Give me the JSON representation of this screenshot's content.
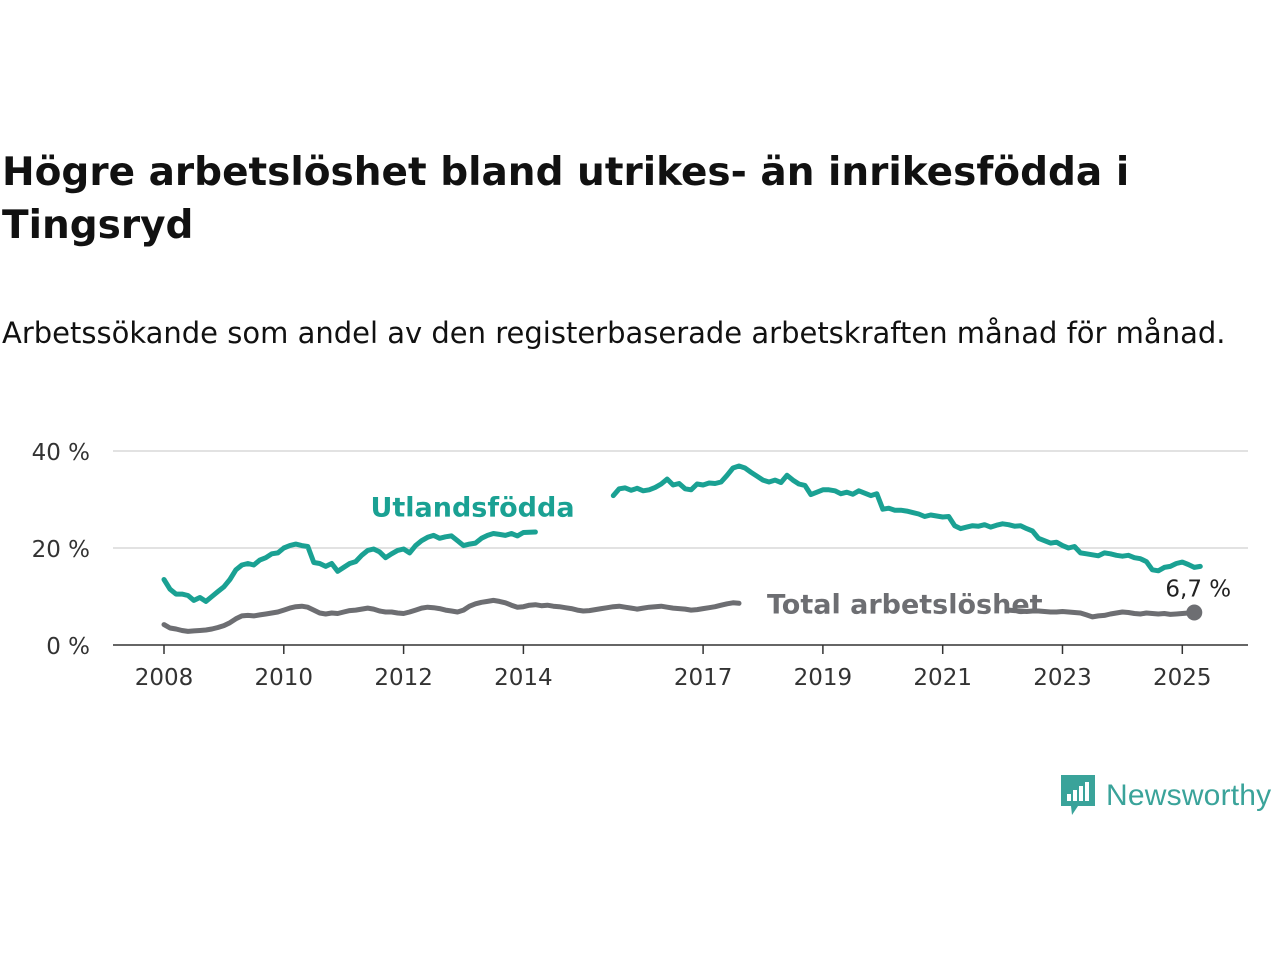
{
  "title": "Högre arbetslöshet bland utrikes- än inrikesfödda i Tingsryd",
  "subtitle": "Arbetssökande som andel av den registerbaserade arbetskraften månad för månad.",
  "brand": {
    "name": "Newsworthy",
    "icon": "newsworthy-logo-icon",
    "color": "#3aa39a"
  },
  "chart_data": {
    "type": "line",
    "title": "Högre arbetslöshet bland utrikes- än inrikesfödda i Tingsryd",
    "subtitle": "Arbetssökande som andel av den registerbaserade arbetskraften månad för månad.",
    "xlabel": "",
    "ylabel": "",
    "x_range": [
      2008,
      2025.3
    ],
    "ylim": [
      0,
      40
    ],
    "x_ticks": [
      2008,
      2010,
      2012,
      2014,
      2017,
      2019,
      2021,
      2023,
      2025
    ],
    "x_tick_labels": [
      "2008",
      "2010",
      "2012",
      "2014",
      "2017",
      "2019",
      "2021",
      "2023",
      "2025"
    ],
    "y_ticks": [
      0,
      20,
      40
    ],
    "y_tick_labels": [
      "0 %",
      "20 %",
      "40 %"
    ],
    "grid": "horizontal",
    "legend": "inline labels",
    "series": [
      {
        "name": "Utlandsfödda",
        "color": "#1aa193",
        "label_position": [
          2013.0,
          26.5
        ],
        "points": [
          [
            2008.0,
            13.5
          ],
          [
            2008.1,
            11.5
          ],
          [
            2008.2,
            10.5
          ],
          [
            2008.3,
            10.5
          ],
          [
            2008.4,
            10.2
          ],
          [
            2008.5,
            9.2
          ],
          [
            2008.6,
            9.8
          ],
          [
            2008.7,
            9.0
          ],
          [
            2008.8,
            10.0
          ],
          [
            2008.9,
            11.0
          ],
          [
            2009.0,
            12.0
          ],
          [
            2009.1,
            13.5
          ],
          [
            2009.2,
            15.5
          ],
          [
            2009.3,
            16.5
          ],
          [
            2009.4,
            16.8
          ],
          [
            2009.5,
            16.5
          ],
          [
            2009.6,
            17.5
          ],
          [
            2009.7,
            18.0
          ],
          [
            2009.8,
            18.8
          ],
          [
            2009.9,
            19.0
          ],
          [
            2010.0,
            20.0
          ],
          [
            2010.1,
            20.5
          ],
          [
            2010.2,
            20.8
          ],
          [
            2010.3,
            20.5
          ],
          [
            2010.4,
            20.3
          ],
          [
            2010.5,
            17.0
          ],
          [
            2010.6,
            16.8
          ],
          [
            2010.7,
            16.2
          ],
          [
            2010.8,
            16.8
          ],
          [
            2010.9,
            15.2
          ],
          [
            2011.0,
            16.0
          ],
          [
            2011.1,
            16.8
          ],
          [
            2011.2,
            17.2
          ],
          [
            2011.3,
            18.5
          ],
          [
            2011.4,
            19.5
          ],
          [
            2011.5,
            19.8
          ],
          [
            2011.6,
            19.2
          ],
          [
            2011.7,
            18.0
          ],
          [
            2011.8,
            18.8
          ],
          [
            2011.9,
            19.5
          ],
          [
            2012.0,
            19.8
          ],
          [
            2012.1,
            19.0
          ],
          [
            2012.2,
            20.5
          ],
          [
            2012.3,
            21.5
          ],
          [
            2012.4,
            22.2
          ],
          [
            2012.5,
            22.6
          ],
          [
            2012.6,
            22.0
          ],
          [
            2012.7,
            22.3
          ],
          [
            2012.8,
            22.5
          ],
          [
            2012.9,
            21.5
          ],
          [
            2013.0,
            20.5
          ],
          [
            2013.1,
            20.8
          ],
          [
            2013.2,
            21.0
          ],
          [
            2013.3,
            22.0
          ],
          [
            2013.4,
            22.6
          ],
          [
            2013.5,
            23.0
          ],
          [
            2013.6,
            22.8
          ],
          [
            2013.7,
            22.6
          ],
          [
            2013.8,
            23.0
          ],
          [
            2013.9,
            22.5
          ],
          [
            2014.0,
            23.2
          ],
          [
            2014.2,
            23.3
          ],
          null,
          [
            2015.5,
            30.8
          ],
          [
            2015.6,
            32.2
          ],
          [
            2015.7,
            32.4
          ],
          [
            2015.8,
            31.9
          ],
          [
            2015.9,
            32.3
          ],
          [
            2016.0,
            31.8
          ],
          [
            2016.1,
            32.0
          ],
          [
            2016.2,
            32.5
          ],
          [
            2016.3,
            33.2
          ],
          [
            2016.4,
            34.2
          ],
          [
            2016.5,
            33.0
          ],
          [
            2016.6,
            33.3
          ],
          [
            2016.7,
            32.2
          ],
          [
            2016.8,
            32.0
          ],
          [
            2016.9,
            33.2
          ],
          [
            2017.0,
            33.0
          ],
          [
            2017.1,
            33.4
          ],
          [
            2017.2,
            33.3
          ],
          [
            2017.3,
            33.6
          ],
          [
            2017.4,
            35.0
          ],
          [
            2017.5,
            36.5
          ],
          [
            2017.6,
            36.9
          ],
          [
            2017.7,
            36.5
          ],
          [
            2017.8,
            35.6
          ],
          [
            2017.9,
            34.8
          ],
          [
            2018.0,
            34.0
          ],
          [
            2018.1,
            33.6
          ],
          [
            2018.2,
            34.0
          ],
          [
            2018.3,
            33.5
          ],
          [
            2018.4,
            35.0
          ],
          [
            2018.5,
            34.0
          ],
          [
            2018.6,
            33.2
          ],
          [
            2018.7,
            32.9
          ],
          [
            2018.8,
            31.0
          ],
          [
            2018.9,
            31.5
          ],
          [
            2019.0,
            32.0
          ],
          [
            2019.1,
            32.0
          ],
          [
            2019.2,
            31.8
          ],
          [
            2019.3,
            31.2
          ],
          [
            2019.4,
            31.5
          ],
          [
            2019.5,
            31.1
          ],
          [
            2019.6,
            31.8
          ],
          [
            2019.7,
            31.3
          ],
          [
            2019.8,
            30.8
          ],
          [
            2019.9,
            31.2
          ],
          [
            2020.0,
            28.0
          ],
          [
            2020.1,
            28.2
          ],
          [
            2020.2,
            27.8
          ],
          [
            2020.3,
            27.8
          ],
          [
            2020.4,
            27.6
          ],
          [
            2020.5,
            27.3
          ],
          [
            2020.6,
            27.0
          ],
          [
            2020.7,
            26.5
          ],
          [
            2020.8,
            26.8
          ],
          [
            2020.9,
            26.6
          ],
          [
            2021.0,
            26.4
          ],
          [
            2021.1,
            26.5
          ],
          [
            2021.2,
            24.6
          ],
          [
            2021.3,
            24.0
          ],
          [
            2021.4,
            24.3
          ],
          [
            2021.5,
            24.6
          ],
          [
            2021.6,
            24.5
          ],
          [
            2021.7,
            24.8
          ],
          [
            2021.8,
            24.3
          ],
          [
            2021.9,
            24.7
          ],
          [
            2022.0,
            25.0
          ],
          [
            2022.1,
            24.8
          ],
          [
            2022.2,
            24.5
          ],
          [
            2022.3,
            24.6
          ],
          [
            2022.4,
            24.0
          ],
          [
            2022.5,
            23.5
          ],
          [
            2022.6,
            22.0
          ],
          [
            2022.7,
            21.5
          ],
          [
            2022.8,
            21.0
          ],
          [
            2022.9,
            21.2
          ],
          [
            2023.0,
            20.5
          ],
          [
            2023.1,
            20.0
          ],
          [
            2023.2,
            20.3
          ],
          [
            2023.3,
            19.0
          ],
          [
            2023.4,
            18.8
          ],
          [
            2023.5,
            18.6
          ],
          [
            2023.6,
            18.4
          ],
          [
            2023.7,
            19.0
          ],
          [
            2023.8,
            18.8
          ],
          [
            2023.9,
            18.5
          ],
          [
            2024.0,
            18.3
          ],
          [
            2024.1,
            18.5
          ],
          [
            2024.2,
            18.0
          ],
          [
            2024.3,
            17.8
          ],
          [
            2024.4,
            17.2
          ],
          [
            2024.5,
            15.5
          ],
          [
            2024.6,
            15.3
          ],
          [
            2024.7,
            16.0
          ],
          [
            2024.8,
            16.2
          ],
          [
            2024.9,
            16.8
          ],
          [
            2025.0,
            17.1
          ],
          [
            2025.1,
            16.6
          ],
          [
            2025.2,
            16.0
          ],
          [
            2025.3,
            16.2
          ]
        ]
      },
      {
        "name": "Total arbetslöshet",
        "color": "#6d6e72",
        "label_position": [
          2020.3,
          7.5
        ],
        "end_label": "6,7 %",
        "end_value": 6.7,
        "points": [
          [
            2008.0,
            4.2
          ],
          [
            2008.1,
            3.5
          ],
          [
            2008.2,
            3.3
          ],
          [
            2008.3,
            3.0
          ],
          [
            2008.4,
            2.8
          ],
          [
            2008.5,
            2.9
          ],
          [
            2008.6,
            3.0
          ],
          [
            2008.7,
            3.1
          ],
          [
            2008.8,
            3.3
          ],
          [
            2008.9,
            3.6
          ],
          [
            2009.0,
            4.0
          ],
          [
            2009.1,
            4.6
          ],
          [
            2009.2,
            5.4
          ],
          [
            2009.3,
            6.0
          ],
          [
            2009.4,
            6.1
          ],
          [
            2009.5,
            6.0
          ],
          [
            2009.6,
            6.2
          ],
          [
            2009.7,
            6.4
          ],
          [
            2009.8,
            6.6
          ],
          [
            2009.9,
            6.8
          ],
          [
            2010.0,
            7.2
          ],
          [
            2010.1,
            7.6
          ],
          [
            2010.2,
            7.9
          ],
          [
            2010.3,
            8.0
          ],
          [
            2010.4,
            7.8
          ],
          [
            2010.5,
            7.2
          ],
          [
            2010.6,
            6.6
          ],
          [
            2010.7,
            6.4
          ],
          [
            2010.8,
            6.6
          ],
          [
            2010.9,
            6.5
          ],
          [
            2011.0,
            6.8
          ],
          [
            2011.1,
            7.1
          ],
          [
            2011.2,
            7.2
          ],
          [
            2011.3,
            7.4
          ],
          [
            2011.4,
            7.6
          ],
          [
            2011.5,
            7.4
          ],
          [
            2011.6,
            7.0
          ],
          [
            2011.7,
            6.8
          ],
          [
            2011.8,
            6.8
          ],
          [
            2011.9,
            6.6
          ],
          [
            2012.0,
            6.5
          ],
          [
            2012.1,
            6.8
          ],
          [
            2012.2,
            7.2
          ],
          [
            2012.3,
            7.6
          ],
          [
            2012.4,
            7.8
          ],
          [
            2012.5,
            7.7
          ],
          [
            2012.6,
            7.5
          ],
          [
            2012.7,
            7.2
          ],
          [
            2012.8,
            7.0
          ],
          [
            2012.9,
            6.8
          ],
          [
            2013.0,
            7.2
          ],
          [
            2013.1,
            8.0
          ],
          [
            2013.2,
            8.5
          ],
          [
            2013.3,
            8.8
          ],
          [
            2013.4,
            9.0
          ],
          [
            2013.5,
            9.2
          ],
          [
            2013.6,
            9.0
          ],
          [
            2013.7,
            8.7
          ],
          [
            2013.8,
            8.2
          ],
          [
            2013.9,
            7.8
          ],
          [
            2014.0,
            7.9
          ],
          [
            2014.1,
            8.2
          ],
          [
            2014.2,
            8.3
          ],
          [
            2014.3,
            8.1
          ],
          [
            2014.4,
            8.2
          ],
          [
            2014.5,
            8.0
          ],
          [
            2014.6,
            7.9
          ],
          [
            2014.7,
            7.7
          ],
          [
            2014.8,
            7.5
          ],
          [
            2014.9,
            7.2
          ],
          [
            2015.0,
            7.0
          ],
          [
            2015.1,
            7.1
          ],
          [
            2015.2,
            7.3
          ],
          [
            2015.3,
            7.5
          ],
          [
            2015.4,
            7.7
          ],
          [
            2015.5,
            7.9
          ],
          [
            2015.6,
            8.0
          ],
          [
            2015.7,
            7.8
          ],
          [
            2015.8,
            7.6
          ],
          [
            2015.9,
            7.4
          ],
          [
            2016.0,
            7.6
          ],
          [
            2016.1,
            7.8
          ],
          [
            2016.2,
            7.9
          ],
          [
            2016.3,
            8.0
          ],
          [
            2016.4,
            7.8
          ],
          [
            2016.5,
            7.6
          ],
          [
            2016.6,
            7.5
          ],
          [
            2016.7,
            7.4
          ],
          [
            2016.8,
            7.2
          ],
          [
            2016.9,
            7.3
          ],
          [
            2017.0,
            7.5
          ],
          [
            2017.1,
            7.7
          ],
          [
            2017.2,
            7.9
          ],
          [
            2017.3,
            8.2
          ],
          [
            2017.4,
            8.5
          ],
          [
            2017.5,
            8.7
          ],
          [
            2017.6,
            8.6
          ],
          null,
          [
            2022.1,
            7.2
          ],
          [
            2022.2,
            7.1
          ],
          [
            2022.3,
            7.0
          ],
          [
            2022.4,
            6.9
          ],
          [
            2022.5,
            7.0
          ],
          [
            2022.6,
            7.0
          ],
          [
            2022.7,
            6.9
          ],
          [
            2022.8,
            6.8
          ],
          [
            2022.9,
            6.8
          ],
          [
            2023.0,
            6.9
          ],
          [
            2023.1,
            6.8
          ],
          [
            2023.2,
            6.7
          ],
          [
            2023.3,
            6.6
          ],
          [
            2023.4,
            6.2
          ],
          [
            2023.5,
            5.8
          ],
          [
            2023.6,
            6.0
          ],
          [
            2023.7,
            6.1
          ],
          [
            2023.8,
            6.4
          ],
          [
            2023.9,
            6.6
          ],
          [
            2024.0,
            6.8
          ],
          [
            2024.1,
            6.7
          ],
          [
            2024.2,
            6.5
          ],
          [
            2024.3,
            6.4
          ],
          [
            2024.4,
            6.6
          ],
          [
            2024.5,
            6.5
          ],
          [
            2024.6,
            6.4
          ],
          [
            2024.7,
            6.5
          ],
          [
            2024.8,
            6.3
          ],
          [
            2024.9,
            6.4
          ],
          [
            2025.0,
            6.5
          ],
          [
            2025.1,
            6.6
          ],
          [
            2025.2,
            6.7
          ]
        ]
      }
    ]
  }
}
